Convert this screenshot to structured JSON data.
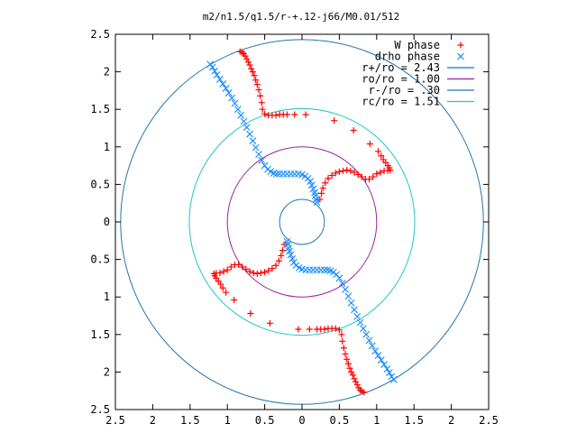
{
  "chart_data": {
    "type": "scatter",
    "title": "m2/n1.5/q1.5/r-+.12-j66/M0.01/512",
    "xlabel": "",
    "ylabel": "",
    "xlim": [
      -2.5,
      2.5
    ],
    "ylim": [
      -2.5,
      2.5
    ],
    "x_ticks": [
      -2.5,
      -2,
      -1.5,
      -1,
      -0.5,
      0,
      0.5,
      1,
      1.5,
      2,
      2.5
    ],
    "y_ticks": [
      -2.5,
      -2,
      -1.5,
      -1,
      -0.5,
      0,
      0.5,
      1,
      1.5,
      2,
      2.5
    ],
    "x_tick_labels": [
      "2.5",
      "2",
      "1.5",
      "1",
      "0.5",
      "0",
      "0.5",
      "1",
      "1.5",
      "2",
      "2.5"
    ],
    "y_tick_labels": [
      "2.5",
      "2",
      "1.5",
      "1",
      "0.5",
      "0",
      "0.5",
      "1",
      "1.5",
      "2",
      "2.5"
    ],
    "grid": false,
    "legend_position": "top-right",
    "circles": [
      {
        "name": "r+/ro = 2.43",
        "radius": 2.43,
        "color": "#1f77b4"
      },
      {
        "name": "ro/ro = 1.00",
        "radius": 1.0,
        "color": "#a020a0"
      },
      {
        "name": "r-/ro = .30",
        "radius": 0.3,
        "color": "#1f77b4"
      },
      {
        "name": "rc/ro = 1.51",
        "radius": 1.51,
        "color": "#20c8c8"
      }
    ],
    "series": [
      {
        "name": "W phase",
        "marker": "+",
        "color": "#ff0000",
        "points": [
          [
            -0.83,
            2.27
          ],
          [
            -0.8,
            2.26
          ],
          [
            -0.78,
            2.24
          ],
          [
            -0.76,
            2.21
          ],
          [
            -0.74,
            2.17
          ],
          [
            -0.72,
            2.13
          ],
          [
            -0.7,
            2.09
          ],
          [
            -0.68,
            2.04
          ],
          [
            -0.66,
            2.0
          ],
          [
            -0.64,
            1.95
          ],
          [
            -0.62,
            1.89
          ],
          [
            -0.6,
            1.83
          ],
          [
            -0.58,
            1.76
          ],
          [
            -0.56,
            1.68
          ],
          [
            -0.54,
            1.59
          ],
          [
            -0.53,
            1.5
          ],
          [
            -0.5,
            1.44
          ],
          [
            -0.45,
            1.42
          ],
          [
            -0.4,
            1.42
          ],
          [
            -0.35,
            1.42
          ],
          [
            -0.3,
            1.43
          ],
          [
            -0.25,
            1.43
          ],
          [
            -0.2,
            1.43
          ],
          [
            -0.1,
            1.43
          ],
          [
            0.05,
            1.43
          ],
          [
            0.43,
            1.35
          ],
          [
            0.69,
            1.22
          ],
          [
            0.91,
            1.04
          ],
          [
            1.02,
            0.94
          ],
          [
            1.06,
            0.88
          ],
          [
            1.09,
            0.83
          ],
          [
            1.12,
            0.79
          ],
          [
            1.15,
            0.75
          ],
          [
            1.17,
            0.72
          ],
          [
            1.18,
            0.69
          ],
          [
            1.15,
            0.68
          ],
          [
            1.1,
            0.68
          ],
          [
            1.05,
            0.66
          ],
          [
            1.0,
            0.64
          ],
          [
            0.95,
            0.6
          ],
          [
            0.9,
            0.57
          ],
          [
            0.85,
            0.57
          ],
          [
            0.8,
            0.6
          ],
          [
            0.75,
            0.63
          ],
          [
            0.7,
            0.66
          ],
          [
            0.65,
            0.68
          ],
          [
            0.6,
            0.69
          ],
          [
            0.55,
            0.68
          ],
          [
            0.5,
            0.67
          ],
          [
            0.45,
            0.65
          ],
          [
            0.4,
            0.62
          ],
          [
            0.35,
            0.58
          ],
          [
            0.31,
            0.52
          ],
          [
            0.28,
            0.45
          ],
          [
            0.26,
            0.38
          ],
          [
            0.24,
            0.3
          ],
          [
            0.83,
            -2.27
          ],
          [
            0.8,
            -2.26
          ],
          [
            0.78,
            -2.24
          ],
          [
            0.76,
            -2.21
          ],
          [
            0.74,
            -2.17
          ],
          [
            0.72,
            -2.13
          ],
          [
            0.7,
            -2.09
          ],
          [
            0.68,
            -2.04
          ],
          [
            0.66,
            -2.0
          ],
          [
            0.64,
            -1.95
          ],
          [
            0.62,
            -1.89
          ],
          [
            0.6,
            -1.83
          ],
          [
            0.58,
            -1.76
          ],
          [
            0.56,
            -1.68
          ],
          [
            0.54,
            -1.59
          ],
          [
            0.53,
            -1.5
          ],
          [
            0.5,
            -1.44
          ],
          [
            0.45,
            -1.42
          ],
          [
            0.4,
            -1.42
          ],
          [
            0.35,
            -1.42
          ],
          [
            0.3,
            -1.43
          ],
          [
            0.25,
            -1.43
          ],
          [
            0.2,
            -1.43
          ],
          [
            0.1,
            -1.43
          ],
          [
            -0.05,
            -1.43
          ],
          [
            -0.43,
            -1.35
          ],
          [
            -0.69,
            -1.22
          ],
          [
            -0.91,
            -1.04
          ],
          [
            -1.02,
            -0.94
          ],
          [
            -1.06,
            -0.88
          ],
          [
            -1.09,
            -0.83
          ],
          [
            -1.12,
            -0.79
          ],
          [
            -1.15,
            -0.75
          ],
          [
            -1.17,
            -0.72
          ],
          [
            -1.18,
            -0.69
          ],
          [
            -1.15,
            -0.68
          ],
          [
            -1.1,
            -0.68
          ],
          [
            -1.05,
            -0.66
          ],
          [
            -1.0,
            -0.64
          ],
          [
            -0.95,
            -0.6
          ],
          [
            -0.9,
            -0.57
          ],
          [
            -0.85,
            -0.57
          ],
          [
            -0.8,
            -0.6
          ],
          [
            -0.75,
            -0.63
          ],
          [
            -0.7,
            -0.66
          ],
          [
            -0.65,
            -0.68
          ],
          [
            -0.6,
            -0.69
          ],
          [
            -0.55,
            -0.68
          ],
          [
            -0.5,
            -0.67
          ],
          [
            -0.45,
            -0.65
          ],
          [
            -0.4,
            -0.62
          ],
          [
            -0.35,
            -0.58
          ],
          [
            -0.31,
            -0.52
          ],
          [
            -0.28,
            -0.45
          ],
          [
            -0.26,
            -0.38
          ],
          [
            -0.24,
            -0.3
          ]
        ]
      },
      {
        "name": "drho phase",
        "marker": "x",
        "color": "#1e90ff",
        "points": [
          [
            -1.23,
            2.1
          ],
          [
            -1.2,
            2.06
          ],
          [
            -1.17,
            2.01
          ],
          [
            -1.14,
            1.96
          ],
          [
            -1.1,
            1.9
          ],
          [
            -1.06,
            1.84
          ],
          [
            -1.02,
            1.78
          ],
          [
            -0.98,
            1.72
          ],
          [
            -0.94,
            1.65
          ],
          [
            -0.9,
            1.58
          ],
          [
            -0.86,
            1.5
          ],
          [
            -0.82,
            1.42
          ],
          [
            -0.78,
            1.34
          ],
          [
            -0.74,
            1.26
          ],
          [
            -0.7,
            1.17
          ],
          [
            -0.66,
            1.08
          ],
          [
            -0.62,
            0.99
          ],
          [
            -0.58,
            0.9
          ],
          [
            -0.54,
            0.82
          ],
          [
            -0.5,
            0.75
          ],
          [
            -0.46,
            0.7
          ],
          [
            -0.42,
            0.67
          ],
          [
            -0.38,
            0.65
          ],
          [
            -0.34,
            0.64
          ],
          [
            -0.3,
            0.64
          ],
          [
            -0.25,
            0.64
          ],
          [
            -0.2,
            0.64
          ],
          [
            -0.15,
            0.64
          ],
          [
            -0.1,
            0.64
          ],
          [
            -0.05,
            0.64
          ],
          [
            0.0,
            0.63
          ],
          [
            0.04,
            0.61
          ],
          [
            0.08,
            0.58
          ],
          [
            0.11,
            0.54
          ],
          [
            0.13,
            0.49
          ],
          [
            0.15,
            0.44
          ],
          [
            0.17,
            0.39
          ],
          [
            0.18,
            0.35
          ],
          [
            0.19,
            0.3
          ],
          [
            0.2,
            0.26
          ],
          [
            1.23,
            -2.1
          ],
          [
            1.2,
            -2.06
          ],
          [
            1.17,
            -2.01
          ],
          [
            1.14,
            -1.96
          ],
          [
            1.1,
            -1.9
          ],
          [
            1.06,
            -1.84
          ],
          [
            1.02,
            -1.78
          ],
          [
            0.98,
            -1.72
          ],
          [
            0.94,
            -1.65
          ],
          [
            0.9,
            -1.58
          ],
          [
            0.86,
            -1.5
          ],
          [
            0.82,
            -1.42
          ],
          [
            0.78,
            -1.34
          ],
          [
            0.74,
            -1.26
          ],
          [
            0.7,
            -1.17
          ],
          [
            0.66,
            -1.08
          ],
          [
            0.62,
            -0.99
          ],
          [
            0.58,
            -0.9
          ],
          [
            0.54,
            -0.82
          ],
          [
            0.5,
            -0.75
          ],
          [
            0.46,
            -0.7
          ],
          [
            0.42,
            -0.67
          ],
          [
            0.38,
            -0.65
          ],
          [
            0.34,
            -0.64
          ],
          [
            0.3,
            -0.64
          ],
          [
            0.25,
            -0.64
          ],
          [
            0.2,
            -0.64
          ],
          [
            0.15,
            -0.64
          ],
          [
            0.1,
            -0.64
          ],
          [
            0.05,
            -0.64
          ],
          [
            0.0,
            -0.63
          ],
          [
            -0.04,
            -0.61
          ],
          [
            -0.08,
            -0.58
          ],
          [
            -0.11,
            -0.54
          ],
          [
            -0.13,
            -0.49
          ],
          [
            -0.15,
            -0.44
          ],
          [
            -0.17,
            -0.39
          ],
          [
            -0.18,
            -0.35
          ],
          [
            -0.19,
            -0.3
          ],
          [
            -0.2,
            -0.26
          ]
        ]
      }
    ]
  }
}
